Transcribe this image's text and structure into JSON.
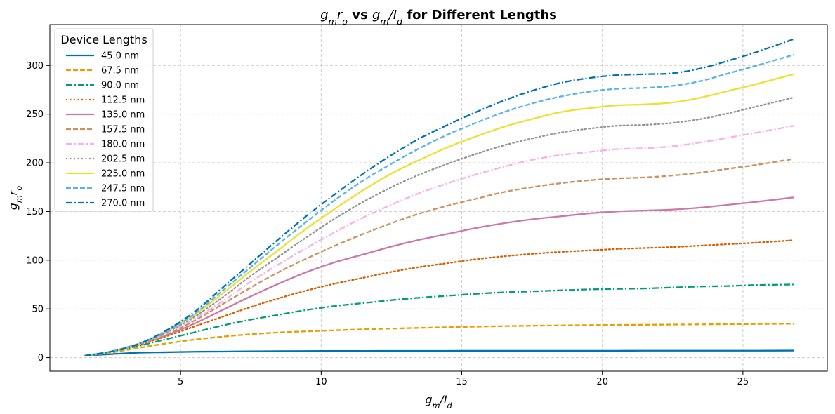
{
  "chart_data": {
    "type": "line",
    "title_parts": [
      {
        "text": "g",
        "style": "italic"
      },
      {
        "text": "m",
        "style": "sub"
      },
      {
        "text": "r",
        "style": "italic"
      },
      {
        "text": "o",
        "style": "sub"
      },
      {
        "text": " vs ",
        "style": "bold"
      },
      {
        "text": "g",
        "style": "italic"
      },
      {
        "text": "m",
        "style": "sub"
      },
      {
        "text": "/",
        "style": "italic"
      },
      {
        "text": "I",
        "style": "italic"
      },
      {
        "text": "d",
        "style": "sub"
      },
      {
        "text": " for Different Lengths",
        "style": "bold"
      }
    ],
    "xlabel_parts": [
      {
        "text": "g",
        "style": "italic"
      },
      {
        "text": "m",
        "style": "sub"
      },
      {
        "text": "/",
        "style": "italic"
      },
      {
        "text": "I",
        "style": "italic"
      },
      {
        "text": "d",
        "style": "sub"
      }
    ],
    "ylabel_parts": [
      {
        "text": "g",
        "style": "italic"
      },
      {
        "text": "m",
        "style": "sub"
      },
      {
        "text": "r",
        "style": "italic"
      },
      {
        "text": "o",
        "style": "sub"
      }
    ],
    "xlim": [
      0.35,
      28.0
    ],
    "ylim": [
      -14,
      342
    ],
    "xticks": [
      5,
      10,
      15,
      20,
      25
    ],
    "yticks": [
      0,
      50,
      100,
      150,
      200,
      250,
      300
    ],
    "grid": true,
    "legend": {
      "title": "Device Lengths",
      "placement": "upper-left"
    },
    "x": [
      1.6,
      2.5,
      3.5,
      4.5,
      5.5,
      6.5,
      7.5,
      8.5,
      9.5,
      10.5,
      11.5,
      12.5,
      13.5,
      14.5,
      15.5,
      16.5,
      17.5,
      18.5,
      19.5,
      20.5,
      21.5,
      22.5,
      23.5,
      24.5,
      25.5,
      26.8
    ],
    "series": [
      {
        "name": "45.0 nm",
        "color": "#0072b2",
        "dash": "solid",
        "values": [
          2,
          3.5,
          5,
          5.5,
          6,
          6.2,
          6.4,
          6.6,
          6.7,
          6.8,
          6.8,
          6.9,
          6.9,
          6.9,
          7,
          7,
          7,
          7,
          7,
          7,
          7.1,
          7.1,
          7.1,
          7.1,
          7.1,
          7.2
        ]
      },
      {
        "name": "67.5 nm",
        "color": "#e69f00",
        "dash": "dashed",
        "values": [
          2,
          5,
          10,
          14.5,
          18.5,
          21.5,
          24,
          25.8,
          27,
          28,
          29,
          29.8,
          30.5,
          31.2,
          31.8,
          32.3,
          32.7,
          33,
          33.3,
          33.5,
          33.7,
          33.9,
          34.1,
          34.3,
          34.5,
          34.8
        ]
      },
      {
        "name": "90.0 nm",
        "color": "#009e73",
        "dash": "dashdot",
        "values": [
          2,
          6,
          12,
          19,
          26,
          33,
          39,
          44,
          49,
          53,
          56,
          59,
          61.5,
          63.5,
          65.5,
          67,
          68,
          69,
          70,
          70.5,
          71,
          72,
          73,
          73.5,
          74.5,
          75
        ]
      },
      {
        "name": "112.5 nm",
        "color": "#d55e00",
        "dash": "dotted",
        "values": [
          2,
          6,
          13,
          22,
          32,
          42,
          52,
          61,
          69,
          76,
          82,
          88,
          93,
          97,
          101,
          104,
          106.5,
          108.5,
          110,
          111.5,
          112.5,
          113.5,
          115,
          116.5,
          118,
          120.5
        ]
      },
      {
        "name": "135.0 nm",
        "color": "#cc79a7",
        "dash": "solid",
        "values": [
          2,
          6,
          14,
          23,
          35,
          49,
          63,
          76,
          88,
          98,
          106,
          114,
          121,
          127,
          133,
          138,
          142,
          145,
          148,
          150,
          151,
          152,
          154,
          157,
          160,
          164.5
        ]
      },
      {
        "name": "157.5 nm",
        "color": "#ca9161",
        "dash": "dashed",
        "values": [
          2,
          6,
          14,
          24,
          38,
          55,
          72,
          88,
          102,
          115,
          127,
          138,
          148,
          156,
          163,
          170,
          175,
          179,
          182,
          184,
          185,
          187,
          190,
          194,
          198,
          204
        ]
      },
      {
        "name": "180.0 nm",
        "color": "#fbafe4",
        "dash": "dashdot",
        "values": [
          2,
          6,
          14,
          25,
          40,
          58,
          78,
          96,
          113,
          129,
          144,
          157,
          169,
          179,
          188,
          196,
          203,
          208,
          211,
          214,
          215,
          217,
          221,
          226,
          231,
          238
        ]
      },
      {
        "name": "202.5 nm",
        "color": "#949494",
        "dash": "dotted",
        "values": [
          2,
          6,
          14,
          26,
          42,
          62,
          84,
          104,
          124,
          143,
          160,
          175,
          188,
          199,
          209,
          218,
          225,
          231,
          235,
          238,
          239,
          241,
          245,
          251,
          258,
          267
        ]
      },
      {
        "name": "225.0 nm",
        "color": "#ece133",
        "dash": "solid",
        "values": [
          2,
          6,
          14,
          27,
          44,
          66,
          89,
          111,
          133,
          153,
          172,
          189,
          203,
          216,
          227,
          237,
          245,
          252,
          256,
          259,
          260,
          262,
          267,
          274,
          281,
          291
        ]
      },
      {
        "name": "247.5 nm",
        "color": "#56b4e9",
        "dash": "dashed",
        "values": [
          2,
          6,
          14,
          27,
          45,
          69,
          93,
          117,
          140,
          162,
          182,
          199,
          215,
          229,
          241,
          252,
          261,
          268,
          273,
          276,
          277,
          279,
          284,
          292,
          300,
          311
        ]
      },
      {
        "name": "270.0 nm",
        "color": "#0072b2",
        "dash": "dashdot",
        "values": [
          2,
          6,
          14,
          28,
          47,
          72,
          97,
          122,
          146,
          168,
          189,
          208,
          225,
          239,
          252,
          264,
          274,
          282,
          287,
          290,
          291,
          292,
          297,
          305,
          314,
          327
        ]
      }
    ]
  }
}
